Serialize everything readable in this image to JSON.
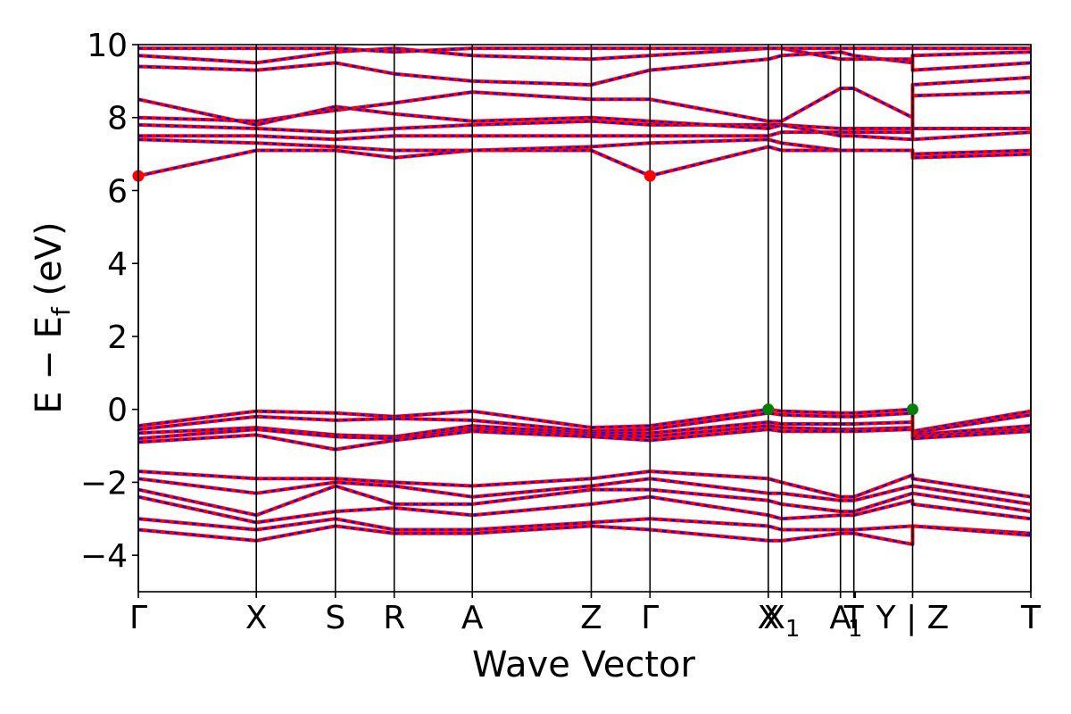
{
  "chart_data": {
    "type": "line",
    "title": "",
    "xlabel": "Wave Vector",
    "ylabel": "E − E_f (eV)",
    "ylabel_parts": {
      "main": "E − E",
      "sub": "f",
      "unit": " (eV)"
    },
    "ylim": [
      -5,
      10
    ],
    "xlim": [
      0,
      1
    ],
    "y_ticks": [
      {
        "value": -4,
        "label": "−4"
      },
      {
        "value": -2,
        "label": "−2"
      },
      {
        "value": 0,
        "label": "0"
      },
      {
        "value": 2,
        "label": "2"
      },
      {
        "value": 4,
        "label": "4"
      },
      {
        "value": 6,
        "label": "6"
      },
      {
        "value": 8,
        "label": "8"
      },
      {
        "value": 10,
        "label": "10"
      }
    ],
    "kpoints": [
      {
        "label": "Γ",
        "sub": "",
        "x": 0.0
      },
      {
        "label": "X",
        "sub": "",
        "x": 0.1322
      },
      {
        "label": "S",
        "sub": "",
        "x": 0.2208
      },
      {
        "label": "R",
        "sub": "",
        "x": 0.2867
      },
      {
        "label": "A",
        "sub": "",
        "x": 0.3742
      },
      {
        "label": "Z",
        "sub": "",
        "x": 0.5075
      },
      {
        "label": "Γ",
        "sub": "",
        "x": 0.5733
      },
      {
        "label": "X",
        "sub": "",
        "x": 0.7058
      },
      {
        "label": "X",
        "sub": "1",
        "x": 0.7208
      },
      {
        "label": "A",
        "sub": "",
        "x": 0.7867
      },
      {
        "label": "T",
        "sub": "",
        "x": 0.8017
      },
      {
        "label": "",
        "sub": "1",
        "x": 0.8033
      },
      {
        "label": "Y | Z",
        "sub": "",
        "x": 0.8675
      },
      {
        "label": "T",
        "sub": "",
        "x": 1.0
      }
    ],
    "grid": false,
    "legend": "none",
    "band_colors": {
      "line": "#ff0000",
      "dash": "#0000ff"
    },
    "cbm_points": [
      {
        "x": 0.0,
        "y": 6.4
      },
      {
        "x": 0.5733,
        "y": 6.4
      }
    ],
    "vbm_points": [
      {
        "x": 0.7058,
        "y": 0.0
      },
      {
        "x": 0.8675,
        "y": 0.0
      }
    ],
    "marker_colors": {
      "cbm": "#ff0000",
      "vbm": "#008000"
    },
    "bands": [
      {
        "x": [
          0,
          0.1322,
          0.2208,
          0.2867,
          0.3742,
          0.5075,
          0.5733,
          0.7058,
          0.7208,
          0.7867,
          0.8017,
          0.8675,
          0.8675,
          1.0
        ],
        "y": [
          6.4,
          7.1,
          7.1,
          6.9,
          7.1,
          7.1,
          6.4,
          7.2,
          7.1,
          7.1,
          7.1,
          7.1,
          7.0,
          7.1
        ]
      },
      {
        "x": [
          0,
          0.1322,
          0.2208,
          0.2867,
          0.3742,
          0.5075,
          0.5733,
          0.7058,
          0.7208,
          0.7867,
          0.8017,
          0.8675,
          0.8675,
          1.0
        ],
        "y": [
          7.4,
          7.3,
          7.2,
          7.1,
          7.1,
          7.2,
          7.3,
          7.4,
          7.3,
          7.1,
          7.1,
          7.1,
          6.9,
          7.0
        ]
      },
      {
        "x": [
          0,
          0.1322,
          0.2208,
          0.2867,
          0.3742,
          0.5075,
          0.5733,
          0.7058,
          0.7208,
          0.7867,
          0.8017,
          0.8675,
          0.8675,
          1.0
        ],
        "y": [
          7.5,
          7.5,
          7.4,
          7.5,
          7.5,
          7.5,
          7.5,
          7.5,
          7.6,
          7.6,
          7.6,
          7.6,
          7.4,
          7.6
        ]
      },
      {
        "x": [
          0,
          0.1322,
          0.2208,
          0.2867,
          0.3742,
          0.5075,
          0.5733,
          0.7058,
          0.7208,
          0.7867,
          0.8017,
          0.8675,
          0.8675,
          1.0
        ],
        "y": [
          7.8,
          7.7,
          7.6,
          7.7,
          7.8,
          7.9,
          7.8,
          7.8,
          7.8,
          7.7,
          7.7,
          7.7,
          7.7,
          7.7
        ]
      },
      {
        "x": [
          0,
          0.1322,
          0.2208,
          0.2867,
          0.3742,
          0.5075,
          0.5733,
          0.7058,
          0.7208,
          0.7867,
          0.8017,
          0.8675,
          0.8675,
          1.0
        ],
        "y": [
          8.0,
          7.9,
          8.2,
          8.4,
          8.7,
          8.5,
          8.5,
          7.9,
          7.9,
          8.8,
          8.8,
          8.0,
          8.6,
          8.7
        ]
      },
      {
        "x": [
          0,
          0.1322,
          0.2208,
          0.2867,
          0.3742,
          0.5075,
          0.5733,
          0.7058,
          0.7208,
          0.7867,
          0.8017,
          0.8675,
          0.8675,
          1.0
        ],
        "y": [
          8.5,
          7.8,
          8.3,
          8.1,
          7.9,
          8.0,
          7.9,
          7.7,
          7.8,
          7.5,
          7.5,
          7.4,
          8.9,
          9.1
        ]
      },
      {
        "x": [
          0,
          0.1322,
          0.2208,
          0.2867,
          0.3742,
          0.5075,
          0.5733,
          0.7058,
          0.7208,
          0.7867,
          0.8017,
          0.8675,
          0.8675,
          1.0
        ],
        "y": [
          9.4,
          9.3,
          9.5,
          9.2,
          9.0,
          8.9,
          9.3,
          9.6,
          9.7,
          9.8,
          9.7,
          9.5,
          9.7,
          9.8
        ]
      },
      {
        "x": [
          0,
          0.1322,
          0.2208,
          0.2867,
          0.3742,
          0.5075,
          0.5733,
          0.7058,
          0.7208,
          0.7867,
          0.8017,
          0.8675,
          0.8675,
          1.0
        ],
        "y": [
          9.7,
          9.5,
          9.8,
          9.9,
          9.7,
          9.6,
          9.7,
          9.9,
          9.9,
          9.6,
          9.6,
          9.6,
          9.3,
          9.5
        ]
      },
      {
        "x": [
          0,
          0.1322,
          0.2208,
          0.2867,
          0.3742,
          0.5075,
          0.5733,
          0.7058,
          0.7208,
          0.7867,
          0.8017,
          0.8675,
          0.8675,
          1.0
        ],
        "y": [
          9.9,
          9.9,
          9.9,
          9.8,
          9.9,
          9.9,
          9.9,
          9.9,
          9.9,
          9.9,
          9.9,
          9.9,
          9.9,
          9.9
        ]
      },
      {
        "x": [
          0,
          0.1322,
          0.2208,
          0.2867,
          0.3742,
          0.5075,
          0.5733,
          0.7058,
          0.7208,
          0.7867,
          0.8017,
          0.8675,
          0.8675,
          1.0
        ],
        "y": [
          -0.45,
          -0.05,
          -0.1,
          -0.2,
          -0.05,
          -0.5,
          -0.45,
          0.0,
          -0.05,
          -0.1,
          -0.1,
          0.0,
          -0.6,
          -0.05
        ]
      },
      {
        "x": [
          0,
          0.1322,
          0.2208,
          0.2867,
          0.3742,
          0.5075,
          0.5733,
          0.7058,
          0.7208,
          0.7867,
          0.8017,
          0.8675,
          0.8675,
          1.0
        ],
        "y": [
          -0.55,
          -0.2,
          -0.3,
          -0.25,
          -0.3,
          -0.6,
          -0.55,
          -0.1,
          -0.15,
          -0.2,
          -0.2,
          -0.1,
          -0.65,
          -0.15
        ]
      },
      {
        "x": [
          0,
          0.1322,
          0.2208,
          0.2867,
          0.3742,
          0.5075,
          0.5733,
          0.7058,
          0.7208,
          0.7867,
          0.8017,
          0.8675,
          0.8675,
          1.0
        ],
        "y": [
          -0.65,
          -0.5,
          -0.7,
          -0.75,
          -0.45,
          -0.65,
          -0.65,
          -0.35,
          -0.4,
          -0.4,
          -0.4,
          -0.35,
          -0.7,
          -0.45
        ]
      },
      {
        "x": [
          0,
          0.1322,
          0.2208,
          0.2867,
          0.3742,
          0.5075,
          0.5733,
          0.7058,
          0.7208,
          0.7867,
          0.8017,
          0.8675,
          0.8675,
          1.0
        ],
        "y": [
          -0.8,
          -0.55,
          -0.75,
          -0.8,
          -0.55,
          -0.7,
          -0.75,
          -0.45,
          -0.5,
          -0.55,
          -0.55,
          -0.5,
          -0.75,
          -0.55
        ]
      },
      {
        "x": [
          0,
          0.1322,
          0.2208,
          0.2867,
          0.3742,
          0.5075,
          0.5733,
          0.7058,
          0.7208,
          0.7867,
          0.8017,
          0.8675,
          0.8675,
          1.0
        ],
        "y": [
          -0.9,
          -0.7,
          -1.1,
          -0.85,
          -0.6,
          -0.75,
          -0.85,
          -0.55,
          -0.6,
          -0.6,
          -0.6,
          -0.55,
          -0.8,
          -0.6
        ]
      },
      {
        "x": [
          0,
          0.1322,
          0.2208,
          0.2867,
          0.3742,
          0.5075,
          0.5733,
          0.7058,
          0.7208,
          0.7867,
          0.8017,
          0.8675,
          0.8675,
          1.0
        ],
        "y": [
          -1.7,
          -1.9,
          -1.9,
          -2.0,
          -2.1,
          -1.9,
          -1.7,
          -1.9,
          -2.0,
          -2.4,
          -2.4,
          -1.8,
          -1.9,
          -2.4
        ]
      },
      {
        "x": [
          0,
          0.1322,
          0.2208,
          0.2867,
          0.3742,
          0.5075,
          0.5733,
          0.7058,
          0.7208,
          0.7867,
          0.8017,
          0.8675,
          0.8675,
          1.0
        ],
        "y": [
          -1.9,
          -2.3,
          -2.0,
          -2.1,
          -2.4,
          -2.1,
          -1.9,
          -2.3,
          -2.3,
          -2.5,
          -2.5,
          -2.1,
          -2.1,
          -2.6
        ]
      },
      {
        "x": [
          0,
          0.1322,
          0.2208,
          0.2867,
          0.3742,
          0.5075,
          0.5733,
          0.7058,
          0.7208,
          0.7867,
          0.8017,
          0.8675,
          0.8675,
          1.0
        ],
        "y": [
          -2.2,
          -2.9,
          -2.1,
          -2.6,
          -2.6,
          -2.2,
          -2.2,
          -2.5,
          -2.6,
          -2.8,
          -2.8,
          -2.3,
          -2.3,
          -2.8
        ]
      },
      {
        "x": [
          0,
          0.1322,
          0.2208,
          0.2867,
          0.3742,
          0.5075,
          0.5733,
          0.7058,
          0.7208,
          0.7867,
          0.8017,
          0.8675,
          0.8675,
          1.0
        ],
        "y": [
          -2.4,
          -3.1,
          -2.8,
          -2.7,
          -2.9,
          -2.6,
          -2.4,
          -2.9,
          -3.0,
          -2.9,
          -2.9,
          -2.5,
          -2.6,
          -3.0
        ]
      },
      {
        "x": [
          0,
          0.1322,
          0.2208,
          0.2867,
          0.3742,
          0.5075,
          0.5733,
          0.7058,
          0.7208,
          0.7867,
          0.8017,
          0.8675,
          0.8675,
          1.0
        ],
        "y": [
          -3.0,
          -3.3,
          -3.0,
          -3.3,
          -3.3,
          -3.1,
          -3.0,
          -3.2,
          -3.3,
          -3.3,
          -3.3,
          -3.2,
          -3.2,
          -3.4
        ]
      },
      {
        "x": [
          0,
          0.1322,
          0.2208,
          0.2867,
          0.3742,
          0.5075,
          0.5733,
          0.7058,
          0.7208,
          0.7867,
          0.8017,
          0.8675,
          0.8675,
          1.0
        ],
        "y": [
          -3.3,
          -3.6,
          -3.2,
          -3.4,
          -3.4,
          -3.2,
          -3.3,
          -3.6,
          -3.6,
          -3.4,
          -3.4,
          -3.7,
          -3.2,
          -3.45
        ]
      }
    ]
  }
}
